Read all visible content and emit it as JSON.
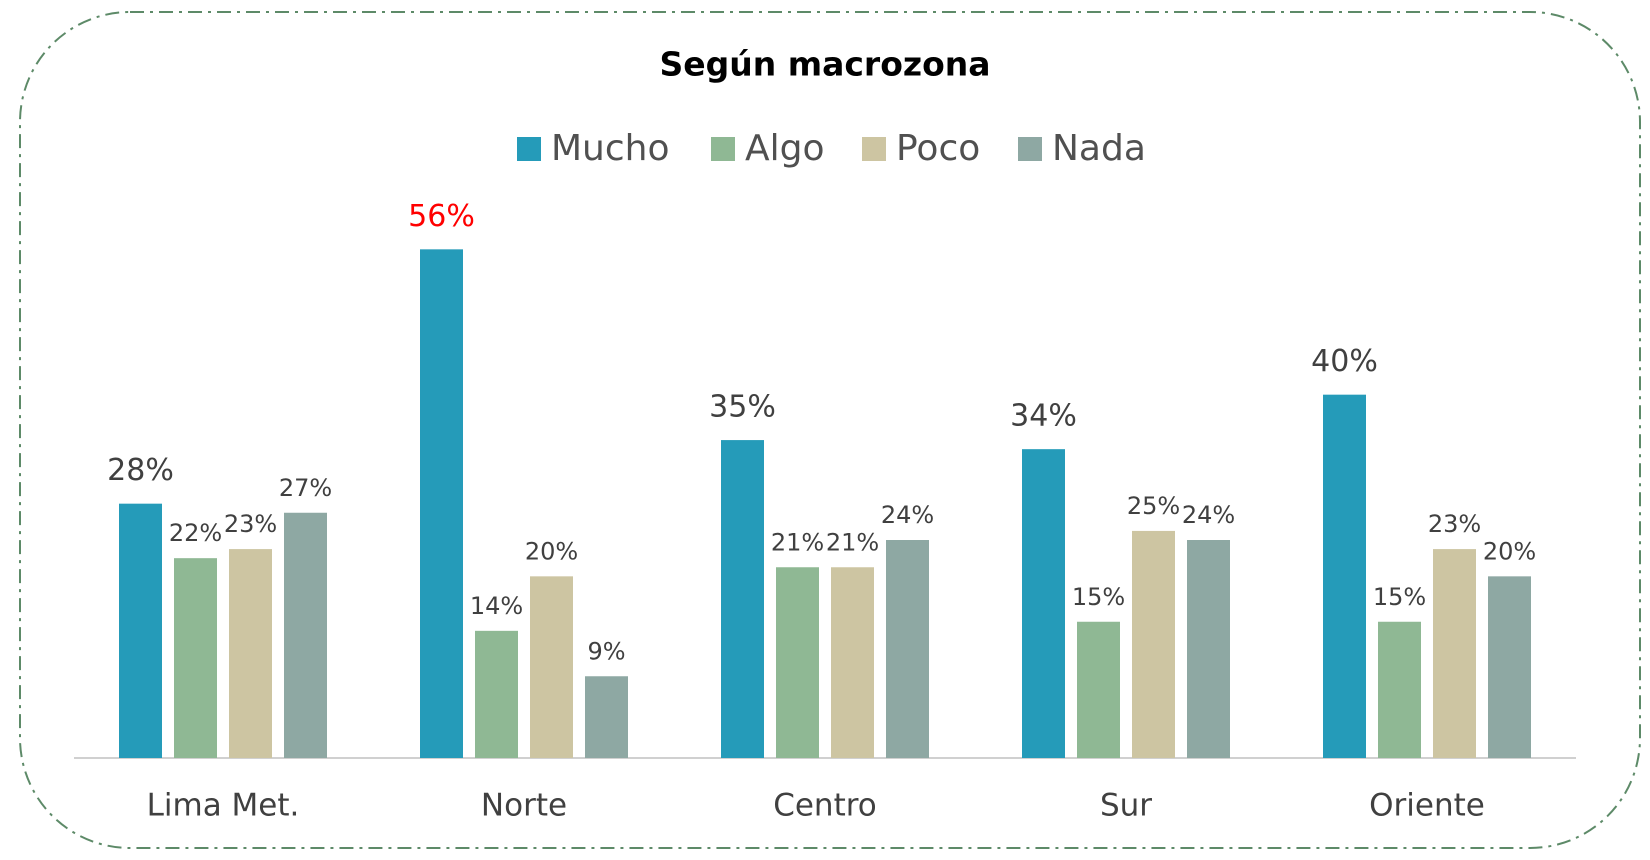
{
  "chart_data": {
    "type": "bar",
    "title": "Según macrozona",
    "categories": [
      "Lima Met.",
      "Norte",
      "Centro",
      "Sur",
      "Oriente"
    ],
    "series": [
      {
        "name": "Mucho",
        "color": "#259bb9",
        "values": [
          28,
          56,
          35,
          34,
          40
        ],
        "value_labels": [
          "28%",
          "56%",
          "35%",
          "34%",
          "40%"
        ],
        "label_colors": [
          "#404040",
          "#ff0000",
          "#404040",
          "#404040",
          "#404040"
        ]
      },
      {
        "name": "Algo",
        "color": "#8fb894",
        "values": [
          22,
          14,
          21,
          15,
          15
        ],
        "value_labels": [
          "22%",
          "14%",
          "21%",
          "15%",
          "15%"
        ]
      },
      {
        "name": "Poco",
        "color": "#cdc5a2",
        "values": [
          23,
          20,
          21,
          25,
          23
        ],
        "value_labels": [
          "23%",
          "20%",
          "21%",
          "25%",
          "23%"
        ]
      },
      {
        "name": "Nada",
        "color": "#8ea8a3",
        "values": [
          27,
          9,
          24,
          24,
          20
        ],
        "value_labels": [
          "27%",
          "9%",
          "24%",
          "24%",
          "20%"
        ]
      }
    ],
    "ylim": [
      0,
      60
    ],
    "legend": "top"
  }
}
